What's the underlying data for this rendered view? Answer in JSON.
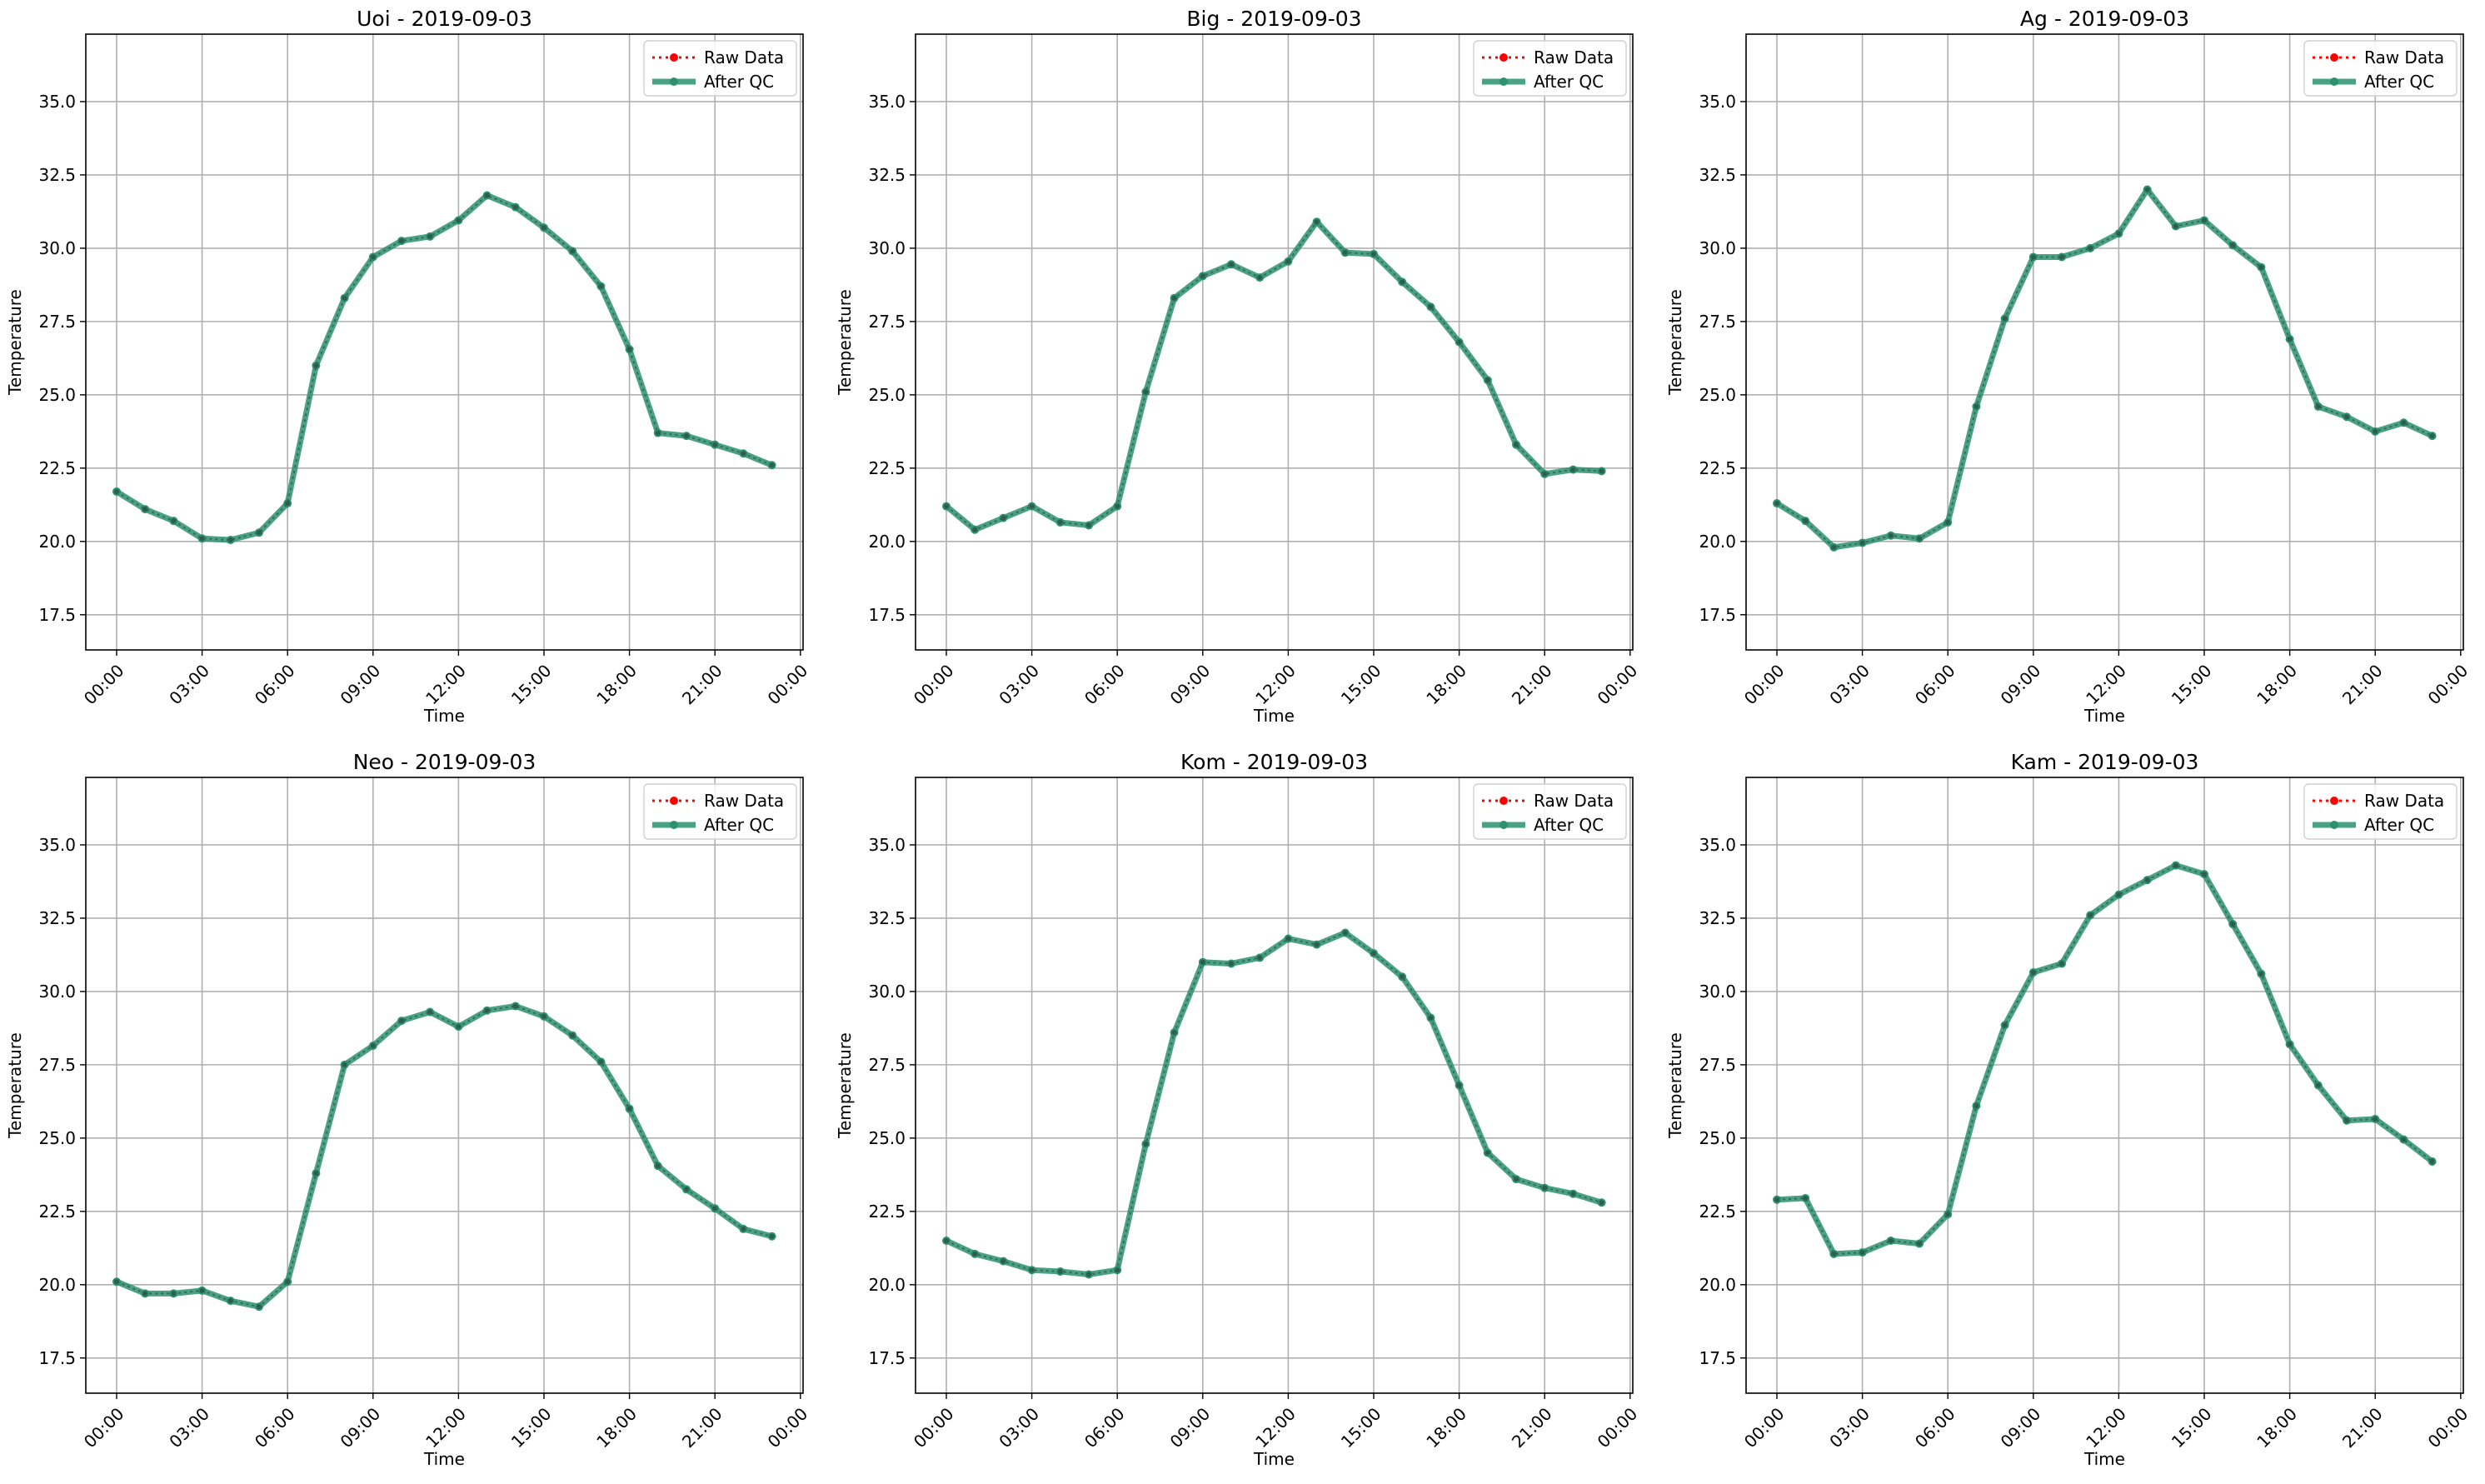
{
  "figure": {
    "legend_labels": [
      "Raw Data",
      "After QC"
    ],
    "legend_location": "top-right",
    "colors": {
      "raw": "#ff0000",
      "qc": "#2a9270",
      "grid": "#b0b0b0"
    }
  },
  "chart_data": [
    {
      "type": "line",
      "title": "Uoi - 2019-09-03",
      "xlabel": "Time",
      "ylabel": "Temperature",
      "x": [
        "00:00",
        "01:00",
        "02:00",
        "03:00",
        "04:00",
        "05:00",
        "06:00",
        "07:00",
        "08:00",
        "09:00",
        "10:00",
        "11:00",
        "12:00",
        "13:00",
        "14:00",
        "15:00",
        "16:00",
        "17:00",
        "18:00",
        "19:00",
        "20:00",
        "21:00",
        "22:00",
        "23:00"
      ],
      "xticks": [
        "00:00",
        "03:00",
        "06:00",
        "09:00",
        "12:00",
        "15:00",
        "18:00",
        "21:00",
        "00:00"
      ],
      "ylim": [
        16.3,
        37.3
      ],
      "yticks": [
        "17.5",
        "20.0",
        "22.5",
        "25.0",
        "27.5",
        "30.0",
        "32.5",
        "35.0"
      ],
      "grid": true,
      "series": [
        {
          "name": "Raw Data",
          "values": [
            21.7,
            21.1,
            20.7,
            20.1,
            20.05,
            20.3,
            21.3,
            26.0,
            28.3,
            29.7,
            30.25,
            30.4,
            30.95,
            31.8,
            31.4,
            30.7,
            29.9,
            28.7,
            26.55,
            23.7,
            23.6,
            23.3,
            23.0,
            22.6
          ]
        },
        {
          "name": "After QC",
          "values": [
            21.7,
            21.1,
            20.7,
            20.1,
            20.05,
            20.3,
            21.3,
            26.0,
            28.3,
            29.7,
            30.25,
            30.4,
            30.95,
            31.8,
            31.4,
            30.7,
            29.9,
            28.7,
            26.55,
            23.7,
            23.6,
            23.3,
            23.0,
            22.6
          ]
        }
      ]
    },
    {
      "type": "line",
      "title": "Big - 2019-09-03",
      "xlabel": "Time",
      "ylabel": "Temperature",
      "x": [
        "00:00",
        "01:00",
        "02:00",
        "03:00",
        "04:00",
        "05:00",
        "06:00",
        "07:00",
        "08:00",
        "09:00",
        "10:00",
        "11:00",
        "12:00",
        "13:00",
        "14:00",
        "15:00",
        "16:00",
        "17:00",
        "18:00",
        "19:00",
        "20:00",
        "21:00",
        "22:00",
        "23:00"
      ],
      "xticks": [
        "00:00",
        "03:00",
        "06:00",
        "09:00",
        "12:00",
        "15:00",
        "18:00",
        "21:00",
        "00:00"
      ],
      "ylim": [
        16.3,
        37.3
      ],
      "yticks": [
        "17.5",
        "20.0",
        "22.5",
        "25.0",
        "27.5",
        "30.0",
        "32.5",
        "35.0"
      ],
      "grid": true,
      "series": [
        {
          "name": "Raw Data",
          "values": [
            21.2,
            20.4,
            20.8,
            21.2,
            20.65,
            20.55,
            21.2,
            25.1,
            28.3,
            29.05,
            29.45,
            29.0,
            29.55,
            30.9,
            29.85,
            29.8,
            28.85,
            28.0,
            26.8,
            25.5,
            23.3,
            22.3,
            22.45,
            22.4
          ]
        },
        {
          "name": "After QC",
          "values": [
            21.2,
            20.4,
            20.8,
            21.2,
            20.65,
            20.55,
            21.2,
            25.1,
            28.3,
            29.05,
            29.45,
            29.0,
            29.55,
            30.9,
            29.85,
            29.8,
            28.85,
            28.0,
            26.8,
            25.5,
            23.3,
            22.3,
            22.45,
            22.4
          ]
        }
      ]
    },
    {
      "type": "line",
      "title": "Ag - 2019-09-03",
      "xlabel": "Time",
      "ylabel": "Temperature",
      "x": [
        "00:00",
        "01:00",
        "02:00",
        "03:00",
        "04:00",
        "05:00",
        "06:00",
        "07:00",
        "08:00",
        "09:00",
        "10:00",
        "11:00",
        "12:00",
        "13:00",
        "14:00",
        "15:00",
        "16:00",
        "17:00",
        "18:00",
        "19:00",
        "20:00",
        "21:00",
        "22:00",
        "23:00"
      ],
      "xticks": [
        "00:00",
        "03:00",
        "06:00",
        "09:00",
        "12:00",
        "15:00",
        "18:00",
        "21:00",
        "00:00"
      ],
      "ylim": [
        16.3,
        37.3
      ],
      "yticks": [
        "17.5",
        "20.0",
        "22.5",
        "25.0",
        "27.5",
        "30.0",
        "32.5",
        "35.0"
      ],
      "grid": true,
      "series": [
        {
          "name": "Raw Data",
          "values": [
            21.3,
            20.7,
            19.8,
            19.95,
            20.2,
            20.1,
            20.65,
            24.6,
            27.6,
            29.7,
            29.7,
            30.0,
            30.5,
            32.0,
            30.75,
            30.95,
            30.1,
            29.35,
            26.9,
            24.6,
            24.25,
            23.75,
            24.05,
            23.6
          ]
        },
        {
          "name": "After QC",
          "values": [
            21.3,
            20.7,
            19.8,
            19.95,
            20.2,
            20.1,
            20.65,
            24.6,
            27.6,
            29.7,
            29.7,
            30.0,
            30.5,
            32.0,
            30.75,
            30.95,
            30.1,
            29.35,
            26.9,
            24.6,
            24.25,
            23.75,
            24.05,
            23.6
          ]
        }
      ]
    },
    {
      "type": "line",
      "title": "Neo - 2019-09-03",
      "xlabel": "Time",
      "ylabel": "Temperature",
      "x": [
        "00:00",
        "01:00",
        "02:00",
        "03:00",
        "04:00",
        "05:00",
        "06:00",
        "07:00",
        "08:00",
        "09:00",
        "10:00",
        "11:00",
        "12:00",
        "13:00",
        "14:00",
        "15:00",
        "16:00",
        "17:00",
        "18:00",
        "19:00",
        "20:00",
        "21:00",
        "22:00",
        "23:00"
      ],
      "xticks": [
        "00:00",
        "03:00",
        "06:00",
        "09:00",
        "12:00",
        "15:00",
        "18:00",
        "21:00",
        "00:00"
      ],
      "ylim": [
        16.3,
        37.3
      ],
      "yticks": [
        "17.5",
        "20.0",
        "22.5",
        "25.0",
        "27.5",
        "30.0",
        "32.5",
        "35.0"
      ],
      "grid": true,
      "series": [
        {
          "name": "Raw Data",
          "values": [
            20.1,
            19.7,
            19.7,
            19.8,
            19.45,
            19.25,
            20.1,
            23.8,
            27.5,
            28.15,
            29.0,
            29.3,
            28.8,
            29.35,
            29.5,
            29.15,
            28.5,
            27.6,
            26.0,
            24.05,
            23.25,
            22.6,
            21.9,
            21.65
          ]
        },
        {
          "name": "After QC",
          "values": [
            20.1,
            19.7,
            19.7,
            19.8,
            19.45,
            19.25,
            20.1,
            23.8,
            27.5,
            28.15,
            29.0,
            29.3,
            28.8,
            29.35,
            29.5,
            29.15,
            28.5,
            27.6,
            26.0,
            24.05,
            23.25,
            22.6,
            21.9,
            21.65
          ]
        }
      ]
    },
    {
      "type": "line",
      "title": "Kom - 2019-09-03",
      "xlabel": "Time",
      "ylabel": "Temperature",
      "x": [
        "00:00",
        "01:00",
        "02:00",
        "03:00",
        "04:00",
        "05:00",
        "06:00",
        "07:00",
        "08:00",
        "09:00",
        "10:00",
        "11:00",
        "12:00",
        "13:00",
        "14:00",
        "15:00",
        "16:00",
        "17:00",
        "18:00",
        "19:00",
        "20:00",
        "21:00",
        "22:00",
        "23:00"
      ],
      "xticks": [
        "00:00",
        "03:00",
        "06:00",
        "09:00",
        "12:00",
        "15:00",
        "18:00",
        "21:00",
        "00:00"
      ],
      "ylim": [
        16.3,
        37.3
      ],
      "yticks": [
        "17.5",
        "20.0",
        "22.5",
        "25.0",
        "27.5",
        "30.0",
        "32.5",
        "35.0"
      ],
      "grid": true,
      "series": [
        {
          "name": "Raw Data",
          "values": [
            21.5,
            21.05,
            20.8,
            20.5,
            20.45,
            20.35,
            20.5,
            24.8,
            28.6,
            31.0,
            30.95,
            31.15,
            31.8,
            31.6,
            32.0,
            31.3,
            30.5,
            29.1,
            26.8,
            24.5,
            23.6,
            23.3,
            23.1,
            22.8
          ]
        },
        {
          "name": "After QC",
          "values": [
            21.5,
            21.05,
            20.8,
            20.5,
            20.45,
            20.35,
            20.5,
            24.8,
            28.6,
            31.0,
            30.95,
            31.15,
            31.8,
            31.6,
            32.0,
            31.3,
            30.5,
            29.1,
            26.8,
            24.5,
            23.6,
            23.3,
            23.1,
            22.8
          ]
        }
      ]
    },
    {
      "type": "line",
      "title": "Kam - 2019-09-03",
      "xlabel": "Time",
      "ylabel": "Temperature",
      "x": [
        "00:00",
        "01:00",
        "02:00",
        "03:00",
        "04:00",
        "05:00",
        "06:00",
        "07:00",
        "08:00",
        "09:00",
        "10:00",
        "11:00",
        "12:00",
        "13:00",
        "14:00",
        "15:00",
        "16:00",
        "17:00",
        "18:00",
        "19:00",
        "20:00",
        "21:00",
        "22:00",
        "23:00"
      ],
      "xticks": [
        "00:00",
        "03:00",
        "06:00",
        "09:00",
        "12:00",
        "15:00",
        "18:00",
        "21:00",
        "00:00"
      ],
      "ylim": [
        16.3,
        37.3
      ],
      "yticks": [
        "17.5",
        "20.0",
        "22.5",
        "25.0",
        "27.5",
        "30.0",
        "32.5",
        "35.0"
      ],
      "grid": true,
      "series": [
        {
          "name": "Raw Data",
          "values": [
            22.9,
            22.95,
            21.05,
            21.1,
            21.5,
            21.4,
            22.4,
            26.1,
            28.85,
            30.65,
            30.95,
            32.6,
            33.3,
            33.8,
            34.3,
            34.0,
            32.3,
            30.6,
            28.2,
            26.8,
            25.6,
            25.65,
            24.95,
            24.2
          ]
        },
        {
          "name": "After QC",
          "values": [
            22.9,
            22.95,
            21.05,
            21.1,
            21.5,
            21.4,
            22.4,
            26.1,
            28.85,
            30.65,
            30.95,
            32.6,
            33.3,
            33.8,
            34.3,
            34.0,
            32.3,
            30.6,
            28.2,
            26.8,
            25.6,
            25.65,
            24.95,
            24.2
          ]
        }
      ]
    }
  ]
}
